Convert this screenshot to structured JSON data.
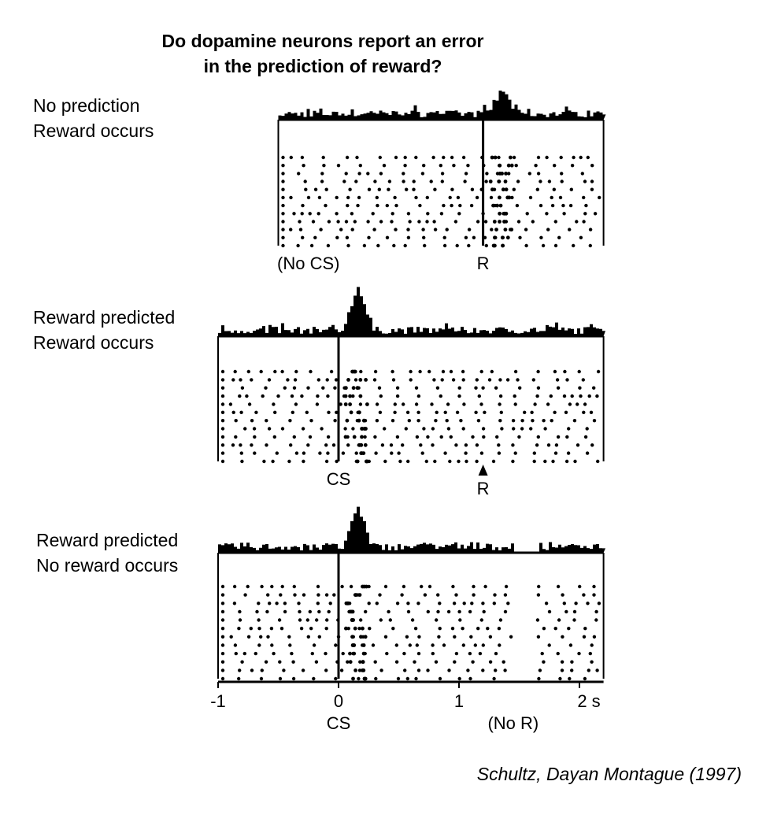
{
  "figure": {
    "title_lines": [
      "Do dopamine neurons report an error",
      "in the prediction of reward?"
    ],
    "citation": "Schultz, Dayan Montague (1997)",
    "x_axis": {
      "range": [
        -1,
        2.2
      ],
      "ticks": [
        -1,
        0,
        1,
        2
      ],
      "tick_labels": [
        "-1",
        "0",
        "1",
        "2 s"
      ],
      "sublabels": [
        {
          "x": 0,
          "text": "CS"
        },
        {
          "x": 1.45,
          "text": "(No R)"
        }
      ]
    },
    "panels": [
      {
        "condition_lines": [
          "No prediction",
          "Reward occurs"
        ],
        "x_start": -0.5,
        "event_x": 1.2,
        "burst_x": 1.35,
        "gap": null,
        "labels": [
          {
            "x": -0.25,
            "text": "(No CS)"
          },
          {
            "x": 1.2,
            "text": "R"
          }
        ],
        "arrow_label": null
      },
      {
        "condition_lines": [
          "Reward predicted",
          "Reward occurs"
        ],
        "x_start": -1,
        "event_x": 0,
        "burst_x": 0.15,
        "gap": null,
        "labels": [
          {
            "x": 0,
            "text": "CS"
          }
        ],
        "arrow_label": {
          "x": 1.2,
          "text": "R"
        }
      },
      {
        "condition_lines": [
          "Reward predicted",
          "No reward occurs"
        ],
        "x_start": -1,
        "event_x": 0,
        "burst_x": 0.15,
        "gap": [
          1.45,
          1.65
        ],
        "labels": [],
        "arrow_label": null
      }
    ]
  },
  "colors": {
    "ink": "#000000",
    "background": "#ffffff"
  }
}
